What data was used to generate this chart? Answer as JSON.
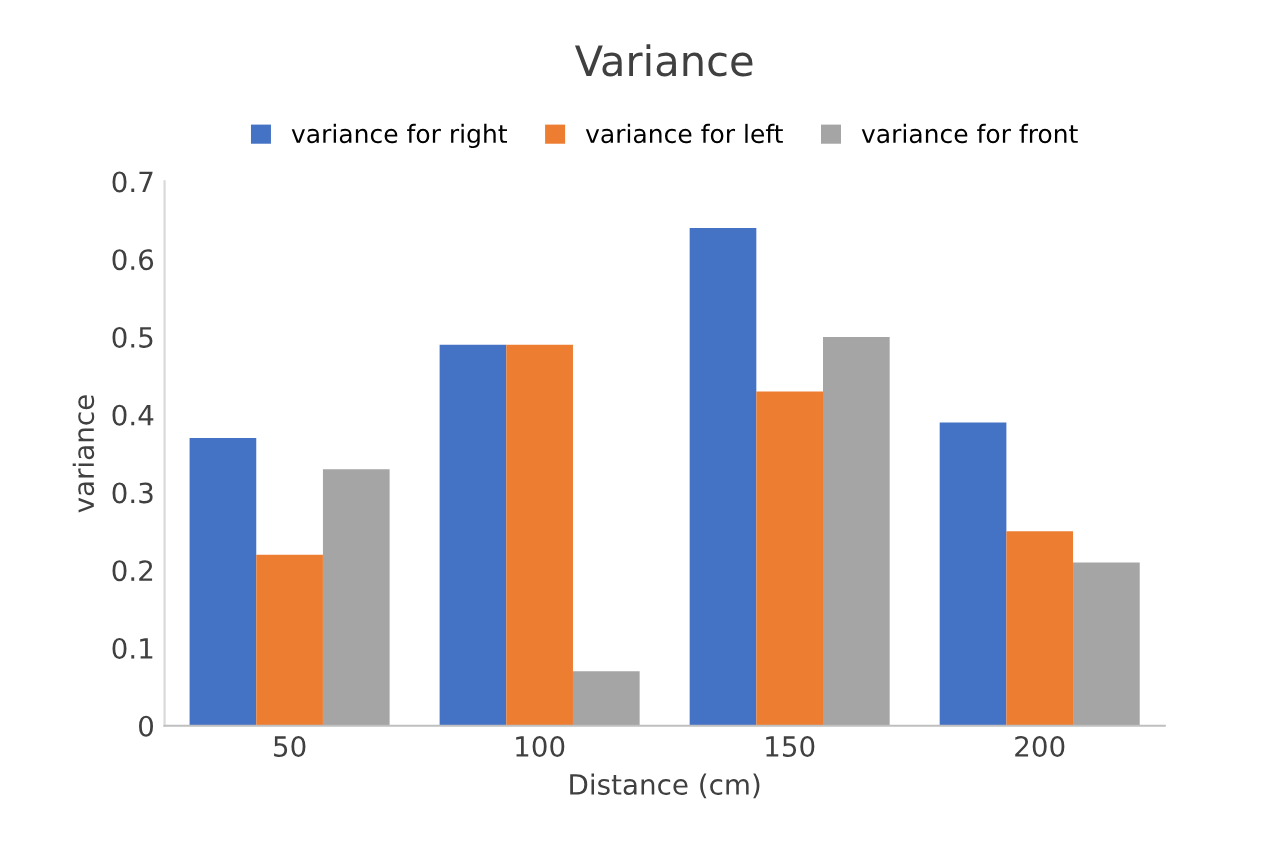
{
  "chart_data": {
    "type": "bar",
    "title": "Variance",
    "xlabel": "Distance (cm)",
    "ylabel": "variance",
    "categories": [
      "50",
      "100",
      "150",
      "200"
    ],
    "series": [
      {
        "name": "variance for right",
        "color": "#4472c4",
        "values": [
          0.37,
          0.49,
          0.64,
          0.39
        ]
      },
      {
        "name": "variance for left",
        "color": "#ed7d31",
        "values": [
          0.22,
          0.49,
          0.43,
          0.25
        ]
      },
      {
        "name": "variance for front",
        "color": "#a5a5a5",
        "values": [
          0.33,
          0.07,
          0.5,
          0.21
        ]
      }
    ],
    "ylim": [
      0,
      0.7
    ],
    "yticks": [
      {
        "value": 0,
        "label": "0"
      },
      0.1,
      0.2,
      0.3,
      0.4,
      0.5,
      0.6,
      0.7
    ],
    "grid": false,
    "legend": "top"
  }
}
